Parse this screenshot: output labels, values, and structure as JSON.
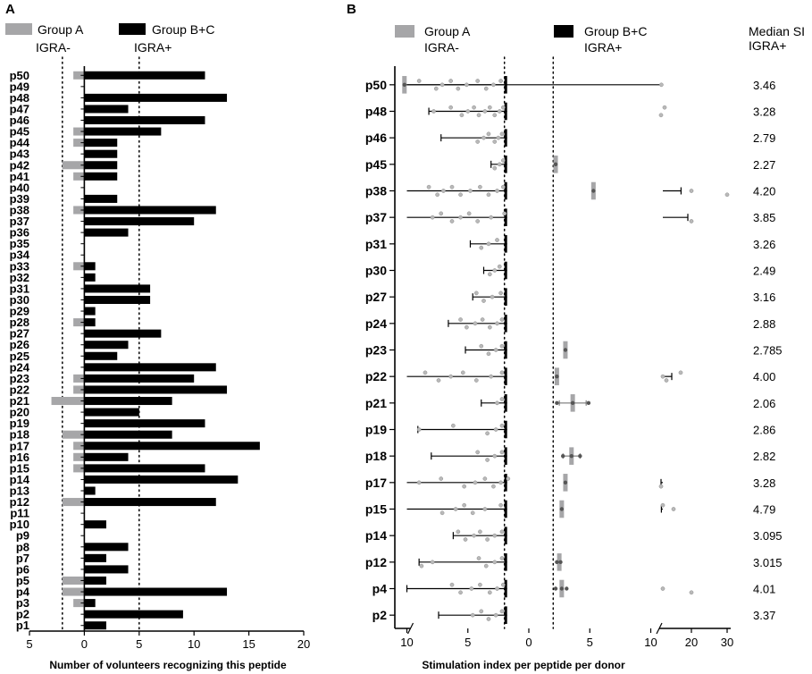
{
  "chart_data": [
    {
      "panel": "A",
      "type": "bar",
      "orientation": "horizontal",
      "xlabel": "Number of volunteers recognizing this peptide",
      "xlim": [
        -5,
        20
      ],
      "xticks": [
        -5,
        0,
        5,
        10,
        15,
        20
      ],
      "xtick_labels": [
        "5",
        "0",
        "5",
        "10",
        "15",
        "20"
      ],
      "thresholds": [
        -2,
        5
      ],
      "group_labels": [
        "IGRA-",
        "IGRA+"
      ],
      "legend": [
        {
          "name": "Group A",
          "color": "#a6a6a8"
        },
        {
          "name": "Group B+C",
          "color": "#000000"
        }
      ],
      "categories": [
        "p50",
        "p49",
        "p48",
        "p47",
        "p46",
        "p45",
        "p44",
        "p43",
        "p42",
        "p41",
        "p40",
        "p39",
        "p38",
        "p37",
        "p36",
        "p35",
        "p34",
        "p33",
        "p32",
        "p31",
        "p30",
        "p29",
        "p28",
        "p27",
        "p26",
        "p25",
        "p24",
        "p23",
        "p22",
        "p21",
        "p20",
        "p19",
        "p18",
        "p17",
        "p16",
        "p15",
        "p14",
        "p13",
        "p12",
        "p11",
        "p10",
        "p9",
        "p8",
        "p7",
        "p6",
        "p5",
        "p4",
        "p3",
        "p2",
        "p1"
      ],
      "series": [
        {
          "name": "Group A",
          "values": [
            1,
            0,
            0,
            0,
            0,
            1,
            1,
            0,
            2,
            1,
            0,
            0,
            1,
            0,
            0,
            0,
            0,
            1,
            0,
            0,
            0,
            0,
            1,
            0,
            0,
            0,
            0,
            1,
            1,
            3,
            0,
            0,
            2,
            1,
            1,
            1,
            0,
            0,
            2,
            0,
            0,
            0,
            0,
            0,
            0,
            2,
            2,
            1,
            0,
            0
          ]
        },
        {
          "name": "Group B+C",
          "values": [
            11,
            0,
            13,
            4,
            11,
            7,
            3,
            3,
            3,
            3,
            0,
            3,
            12,
            10,
            4,
            0,
            0,
            1,
            1,
            6,
            6,
            1,
            1,
            7,
            4,
            3,
            12,
            10,
            13,
            8,
            5,
            11,
            8,
            16,
            4,
            11,
            14,
            1,
            12,
            0,
            2,
            0,
            4,
            2,
            4,
            2,
            13,
            1,
            9,
            2
          ]
        }
      ]
    },
    {
      "panel": "B",
      "type": "bar",
      "orientation": "horizontal",
      "xlabel": "Stimulation index per peptide per donor",
      "axis_break": [
        10,
        12
      ],
      "xticks_left": [
        10,
        5,
        0,
        5,
        10
      ],
      "xticks_right": [
        20,
        30
      ],
      "thresholds": [
        -2,
        2
      ],
      "group_labels": [
        "IGRA-",
        "IGRA+"
      ],
      "legend": [
        {
          "name": "Group A",
          "color": "#a6a6a8"
        },
        {
          "name": "Group B+C",
          "color": "#000000"
        }
      ],
      "median_header": "Median SI\nIGRA+",
      "peptides": [
        {
          "label": "p50",
          "median": "3.46",
          "a_mean": 10.2,
          "a_sd": 0.2,
          "a_pts": [
            10.2
          ],
          "bc_mean": 8.0,
          "bc_sd": 2.2,
          "bc_pts": [
            2.3,
            2.9,
            3.5,
            4.2,
            5.1,
            5.8,
            6.4,
            7.1,
            7.6,
            9.0,
            11.6
          ]
        },
        {
          "label": "p48",
          "median": "3.28",
          "a_mean": null,
          "a_sd": 0,
          "a_pts": [],
          "bc_mean": 6.2,
          "bc_sd": 2.0,
          "bc_pts": [
            2.1,
            2.4,
            2.8,
            3.2,
            3.6,
            4.1,
            4.5,
            5.0,
            5.5,
            6.4,
            7.8,
            11.5,
            12.5
          ]
        },
        {
          "label": "p46",
          "median": "2.79",
          "a_mean": null,
          "a_sd": 0,
          "a_pts": [],
          "bc_mean": 3.8,
          "bc_sd": 3.4,
          "bc_pts": [
            2.2,
            2.5,
            2.8,
            3.3,
            3.7,
            4.2
          ]
        },
        {
          "label": "p45",
          "median": "2.27",
          "a_mean": -2.2,
          "a_sd": 0.15,
          "a_pts": [
            -2.2
          ],
          "bc_mean": 2.6,
          "bc_sd": 0.5,
          "bc_pts": [
            2.1,
            2.4,
            2.8
          ]
        },
        {
          "label": "p38",
          "median": "4.20",
          "a_mean": -5.3,
          "a_sd": 0.2,
          "a_pts": [
            -5.3
          ],
          "bc_mean": 7.1,
          "bc_sd": 10.0,
          "bc_pts": [
            2.1,
            2.6,
            3.3,
            4.0,
            4.8,
            5.6,
            6.3,
            7.0,
            7.5,
            8.2,
            20.0,
            30.0
          ]
        },
        {
          "label": "p37",
          "median": "3.85",
          "a_mean": null,
          "a_sd": 0,
          "a_pts": [],
          "bc_mean": 9.0,
          "bc_sd": 10.0,
          "bc_pts": [
            2.0,
            3.1,
            4.2,
            4.9,
            5.6,
            6.3,
            7.2,
            7.9,
            20.0
          ]
        },
        {
          "label": "p31",
          "median": "3.26",
          "a_mean": null,
          "a_sd": 0,
          "a_pts": [],
          "bc_mean": 4.2,
          "bc_sd": 0.6,
          "bc_pts": [
            2.6,
            3.3,
            3.9
          ]
        },
        {
          "label": "p30",
          "median": "2.49",
          "a_mean": null,
          "a_sd": 0,
          "a_pts": [],
          "bc_mean": 3.5,
          "bc_sd": 0.2,
          "bc_pts": [
            2.4,
            2.8,
            3.2
          ]
        },
        {
          "label": "p27",
          "median": "3.16",
          "a_mean": null,
          "a_sd": 0,
          "a_pts": [],
          "bc_mean": 4.4,
          "bc_sd": 0.2,
          "bc_pts": [
            2.3,
            3.0,
            3.7,
            4.3
          ]
        },
        {
          "label": "p24",
          "median": "2.88",
          "a_mean": null,
          "a_sd": 0,
          "a_pts": [],
          "bc_mean": 4.9,
          "bc_sd": 1.7,
          "bc_pts": [
            2.2,
            2.6,
            3.2,
            3.8,
            4.4,
            5.1,
            5.6
          ]
        },
        {
          "label": "p23",
          "median": "2.785",
          "a_mean": -3.0,
          "a_sd": 0.2,
          "a_pts": [
            -3.0
          ],
          "bc_mean": 3.8,
          "bc_sd": 1.4,
          "bc_pts": [
            2.2,
            2.7,
            3.3,
            3.9
          ]
        },
        {
          "label": "p22",
          "median": "4.00",
          "a_mean": -2.3,
          "a_sd": 0.15,
          "a_pts": [
            -2.3
          ],
          "bc_mean": 9.5,
          "bc_sd": 5.0,
          "bc_pts": [
            2.2,
            3.1,
            4.3,
            5.4,
            6.4,
            7.4,
            8.5,
            12.0,
            13.0,
            17.0
          ]
        },
        {
          "label": "p21",
          "median": "2.06",
          "a_mean": -3.6,
          "a_sd": 1.1,
          "a_pts": [
            -4.9,
            -3.6,
            -2.3
          ],
          "bc_mean": 2.8,
          "bc_sd": 1.1,
          "bc_pts": [
            2.2,
            2.6
          ]
        },
        {
          "label": "p19",
          "median": "2.86",
          "a_mean": null,
          "a_sd": 0,
          "a_pts": [],
          "bc_mean": 3.7,
          "bc_sd": 5.4,
          "bc_pts": [
            2.2,
            2.7,
            3.4,
            6.2,
            9.0
          ]
        },
        {
          "label": "p18",
          "median": "2.82",
          "a_mean": -3.5,
          "a_sd": 0.7,
          "a_pts": [
            -4.2,
            -3.5,
            -2.8
          ],
          "bc_mean": 3.9,
          "bc_sd": 4.1,
          "bc_pts": [
            2.2,
            2.8,
            3.4,
            4.2
          ]
        },
        {
          "label": "p17",
          "median": "3.28",
          "a_mean": -3.0,
          "a_sd": 0.15,
          "a_pts": [
            -3.0
          ],
          "bc_mean": 5.0,
          "bc_sd": 6.5,
          "bc_pts": [
            1.7,
            2.3,
            2.9,
            3.6,
            4.4,
            5.3,
            7.2,
            9.0,
            11.5
          ]
        },
        {
          "label": "p15",
          "median": "4.79",
          "a_mean": -2.7,
          "a_sd": 0.2,
          "a_pts": [
            -2.7
          ],
          "bc_mean": 7.9,
          "bc_sd": 3.7,
          "bc_pts": [
            2.3,
            3.6,
            4.6,
            5.3,
            6.0,
            7.1,
            12.0,
            15.0
          ]
        },
        {
          "label": "p14",
          "median": "3.095",
          "a_mean": null,
          "a_sd": 0,
          "a_pts": [],
          "bc_mean": 4.9,
          "bc_sd": 1.3,
          "bc_pts": [
            2.2,
            2.8,
            3.4,
            4.0,
            4.5,
            5.2,
            5.8
          ]
        },
        {
          "label": "p12",
          "median": "3.015",
          "a_mean": -2.5,
          "a_sd": 0.3,
          "a_pts": [
            -2.6,
            -2.3
          ],
          "bc_mean": 4.2,
          "bc_sd": 4.8,
          "bc_pts": [
            2.2,
            2.8,
            3.5,
            4.1,
            7.9,
            8.8
          ]
        },
        {
          "label": "p4",
          "median": "4.01",
          "a_mean": -2.7,
          "a_sd": 0.3,
          "a_pts": [
            -3.1,
            -2.7,
            -2.2
          ],
          "bc_mean": 6.2,
          "bc_sd": 3.8,
          "bc_pts": [
            2.1,
            2.6,
            3.2,
            4.0,
            4.7,
            5.6,
            6.3,
            12.0,
            20.0
          ]
        },
        {
          "label": "p2",
          "median": "3.37",
          "a_mean": null,
          "a_sd": 0,
          "a_pts": [],
          "bc_mean": 5.0,
          "bc_sd": 2.4,
          "bc_pts": [
            2.2,
            2.7,
            3.3,
            3.9,
            4.6
          ]
        }
      ]
    }
  ]
}
